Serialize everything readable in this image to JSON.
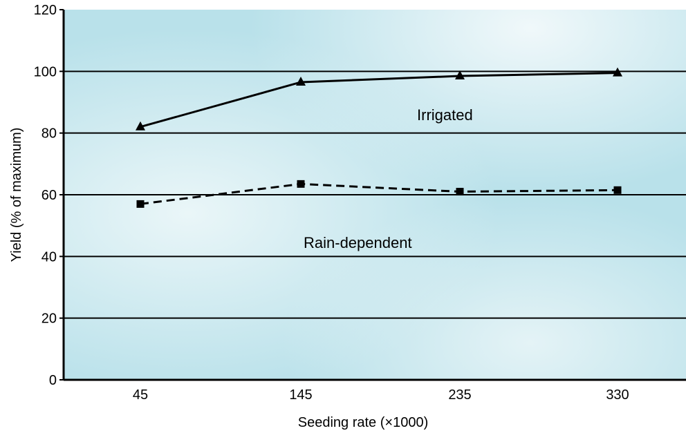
{
  "chart_data": {
    "type": "line",
    "title": "",
    "xlabel": "Seeding rate (×1000)",
    "ylabel": "Yield (% of maximum)",
    "categories": [
      "45",
      "145",
      "235",
      "330"
    ],
    "ylim": [
      0,
      120
    ],
    "yticks": [
      "0",
      "20",
      "40",
      "60",
      "80",
      "100",
      "120"
    ],
    "grid": true,
    "series": [
      {
        "name": "Irrigated",
        "values": [
          82,
          96.5,
          98.5,
          99.5
        ],
        "line": "solid",
        "marker": "triangle"
      },
      {
        "name": "Rain-dependent",
        "values": [
          57,
          63.5,
          61,
          61.5
        ],
        "line": "dashed",
        "marker": "square"
      }
    ]
  }
}
